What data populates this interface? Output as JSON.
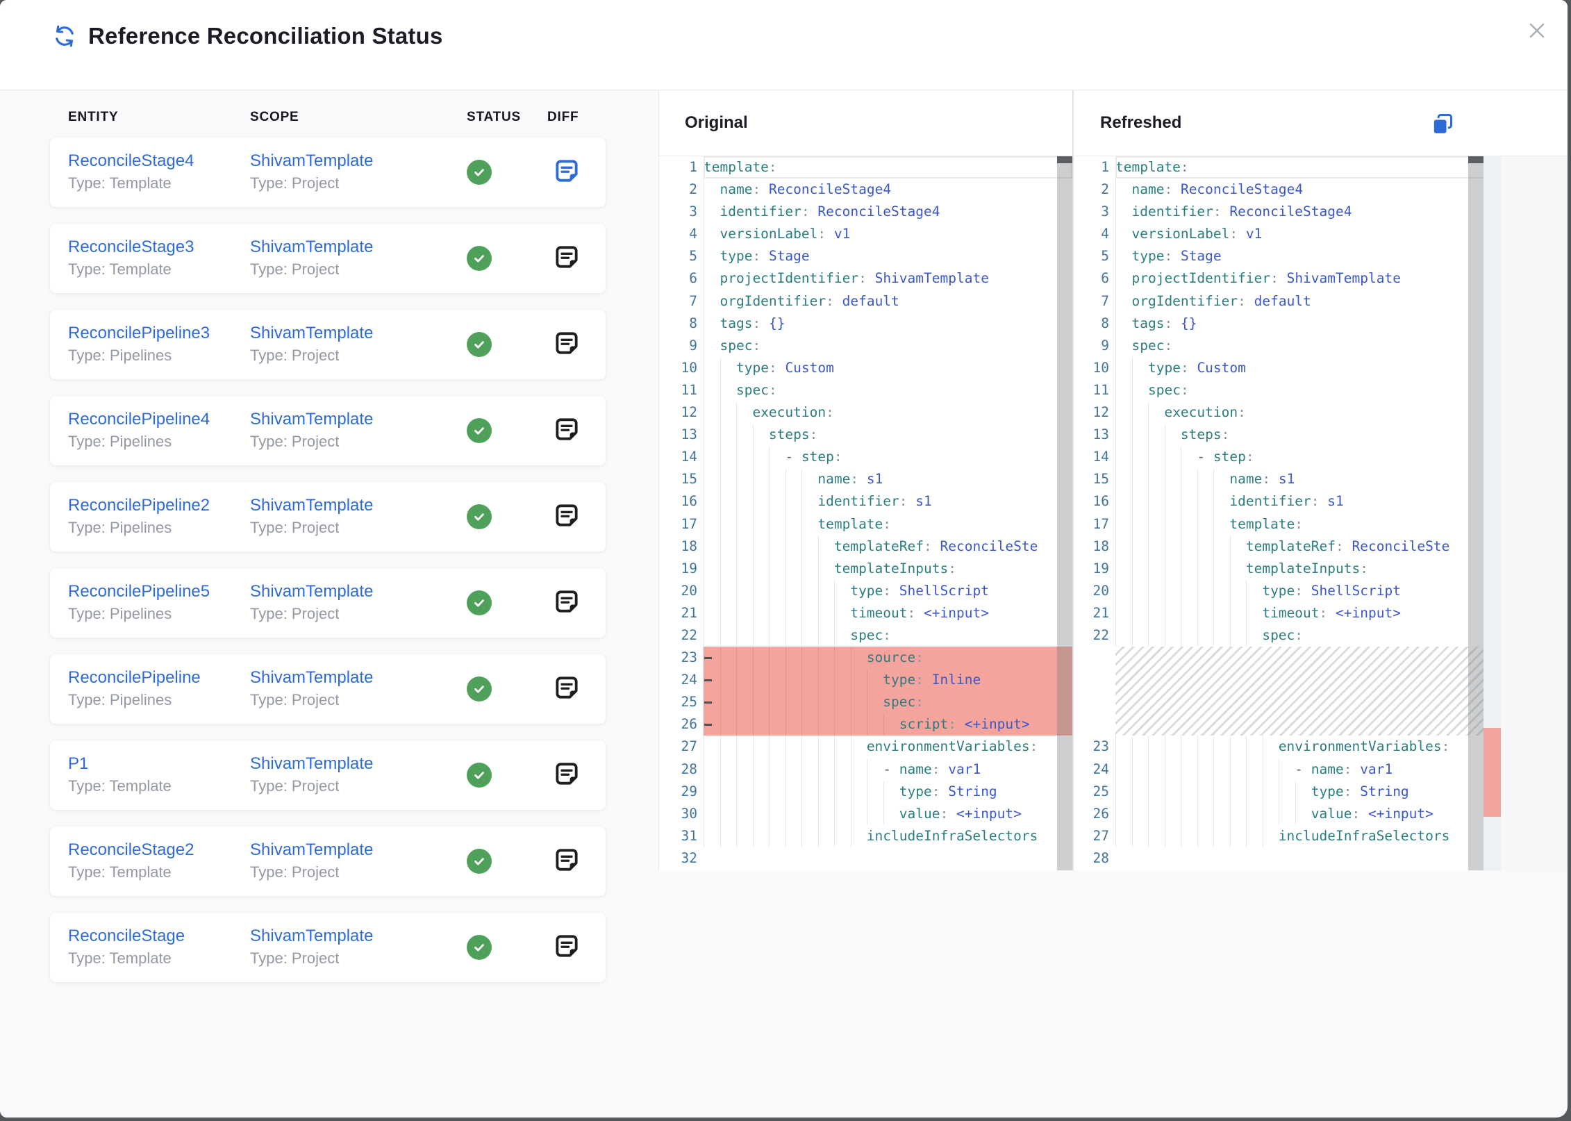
{
  "header": {
    "title": "Reference Reconciliation Status"
  },
  "icons": {
    "refresh": "sync-arrows",
    "close": "x",
    "status_ok": "check-circle",
    "diff": "note-document",
    "copy": "copy-pages"
  },
  "colors": {
    "accent_blue": "#2e6bd8",
    "success_green": "#4fa15a",
    "removed_line_bg": "#f4a49c",
    "ruler_mark_red": "#f2a39b",
    "code_key_teal": "#2a7d80",
    "code_value_blue": "#3b57c9",
    "line_number_blue": "#41759b"
  },
  "table": {
    "columns": [
      "ENTITY",
      "SCOPE",
      "STATUS",
      "DIFF"
    ],
    "rows": [
      {
        "entity": "ReconcileStage4",
        "entity_type": "Type: Template",
        "scope": "ShivamTemplate",
        "scope_type": "Type: Project",
        "status": "success",
        "diff_selected": true
      },
      {
        "entity": "ReconcileStage3",
        "entity_type": "Type: Template",
        "scope": "ShivamTemplate",
        "scope_type": "Type: Project",
        "status": "success",
        "diff_selected": false
      },
      {
        "entity": "ReconcilePipeline3",
        "entity_type": "Type: Pipelines",
        "scope": "ShivamTemplate",
        "scope_type": "Type: Project",
        "status": "success",
        "diff_selected": false
      },
      {
        "entity": "ReconcilePipeline4",
        "entity_type": "Type: Pipelines",
        "scope": "ShivamTemplate",
        "scope_type": "Type: Project",
        "status": "success",
        "diff_selected": false
      },
      {
        "entity": "ReconcilePipeline2",
        "entity_type": "Type: Pipelines",
        "scope": "ShivamTemplate",
        "scope_type": "Type: Project",
        "status": "success",
        "diff_selected": false
      },
      {
        "entity": "ReconcilePipeline5",
        "entity_type": "Type: Pipelines",
        "scope": "ShivamTemplate",
        "scope_type": "Type: Project",
        "status": "success",
        "diff_selected": false
      },
      {
        "entity": "ReconcilePipeline",
        "entity_type": "Type: Pipelines",
        "scope": "ShivamTemplate",
        "scope_type": "Type: Project",
        "status": "success",
        "diff_selected": false
      },
      {
        "entity": "P1",
        "entity_type": "Type: Template",
        "scope": "ShivamTemplate",
        "scope_type": "Type: Project",
        "status": "success",
        "diff_selected": false
      },
      {
        "entity": "ReconcileStage2",
        "entity_type": "Type: Template",
        "scope": "ShivamTemplate",
        "scope_type": "Type: Project",
        "status": "success",
        "diff_selected": false
      },
      {
        "entity": "ReconcileStage",
        "entity_type": "Type: Template",
        "scope": "ShivamTemplate",
        "scope_type": "Type: Project",
        "status": "success",
        "diff_selected": false
      }
    ]
  },
  "diff": {
    "original": {
      "title": "Original",
      "lines": [
        {
          "n": 1,
          "t": "template:"
        },
        {
          "n": 2,
          "t": "  name: ReconcileStage4"
        },
        {
          "n": 3,
          "t": "  identifier: ReconcileStage4"
        },
        {
          "n": 4,
          "t": "  versionLabel: v1"
        },
        {
          "n": 5,
          "t": "  type: Stage"
        },
        {
          "n": 6,
          "t": "  projectIdentifier: ShivamTemplate"
        },
        {
          "n": 7,
          "t": "  orgIdentifier: default"
        },
        {
          "n": 8,
          "t": "  tags: {}"
        },
        {
          "n": 9,
          "t": "  spec:"
        },
        {
          "n": 10,
          "t": "    type: Custom"
        },
        {
          "n": 11,
          "t": "    spec:"
        },
        {
          "n": 12,
          "t": "      execution:"
        },
        {
          "n": 13,
          "t": "        steps:"
        },
        {
          "n": 14,
          "t": "          - step:"
        },
        {
          "n": 15,
          "t": "              name: s1"
        },
        {
          "n": 16,
          "t": "              identifier: s1"
        },
        {
          "n": 17,
          "t": "              template:"
        },
        {
          "n": 18,
          "t": "                templateRef: ReconcileSte"
        },
        {
          "n": 19,
          "t": "                templateInputs:"
        },
        {
          "n": 20,
          "t": "                  type: ShellScript"
        },
        {
          "n": 21,
          "t": "                  timeout: <+input>"
        },
        {
          "n": 22,
          "t": "                  spec:"
        },
        {
          "n": 23,
          "t": "                    source:",
          "removed": true
        },
        {
          "n": 24,
          "t": "                      type: Inline",
          "removed": true
        },
        {
          "n": 25,
          "t": "                      spec:",
          "removed": true
        },
        {
          "n": 26,
          "t": "                        script: <+input>",
          "removed": true
        },
        {
          "n": 27,
          "t": "                    environmentVariables:"
        },
        {
          "n": 28,
          "t": "                      - name: var1"
        },
        {
          "n": 29,
          "t": "                        type: String"
        },
        {
          "n": 30,
          "t": "                        value: <+input>"
        },
        {
          "n": 31,
          "t": "                    includeInfraSelectors"
        },
        {
          "n": 32,
          "t": ""
        }
      ]
    },
    "refreshed": {
      "title": "Refreshed",
      "lines": [
        {
          "n": 1,
          "t": "template:"
        },
        {
          "n": 2,
          "t": "  name: ReconcileStage4"
        },
        {
          "n": 3,
          "t": "  identifier: ReconcileStage4"
        },
        {
          "n": 4,
          "t": "  versionLabel: v1"
        },
        {
          "n": 5,
          "t": "  type: Stage"
        },
        {
          "n": 6,
          "t": "  projectIdentifier: ShivamTemplate"
        },
        {
          "n": 7,
          "t": "  orgIdentifier: default"
        },
        {
          "n": 8,
          "t": "  tags: {}"
        },
        {
          "n": 9,
          "t": "  spec:"
        },
        {
          "n": 10,
          "t": "    type: Custom"
        },
        {
          "n": 11,
          "t": "    spec:"
        },
        {
          "n": 12,
          "t": "      execution:"
        },
        {
          "n": 13,
          "t": "        steps:"
        },
        {
          "n": 14,
          "t": "          - step:"
        },
        {
          "n": 15,
          "t": "              name: s1"
        },
        {
          "n": 16,
          "t": "              identifier: s1"
        },
        {
          "n": 17,
          "t": "              template:"
        },
        {
          "n": 18,
          "t": "                templateRef: ReconcileSte"
        },
        {
          "n": 19,
          "t": "                templateInputs:"
        },
        {
          "n": 20,
          "t": "                  type: ShellScript"
        },
        {
          "n": 21,
          "t": "                  timeout: <+input>"
        },
        {
          "n": 22,
          "t": "                  spec:"
        },
        {
          "hatch": true,
          "lines": 4
        },
        {
          "n": 23,
          "t": "                    environmentVariables:"
        },
        {
          "n": 24,
          "t": "                      - name: var1"
        },
        {
          "n": 25,
          "t": "                        type: String"
        },
        {
          "n": 26,
          "t": "                        value: <+input>"
        },
        {
          "n": 27,
          "t": "                    includeInfraSelectors"
        },
        {
          "n": 28,
          "t": ""
        }
      ]
    }
  }
}
